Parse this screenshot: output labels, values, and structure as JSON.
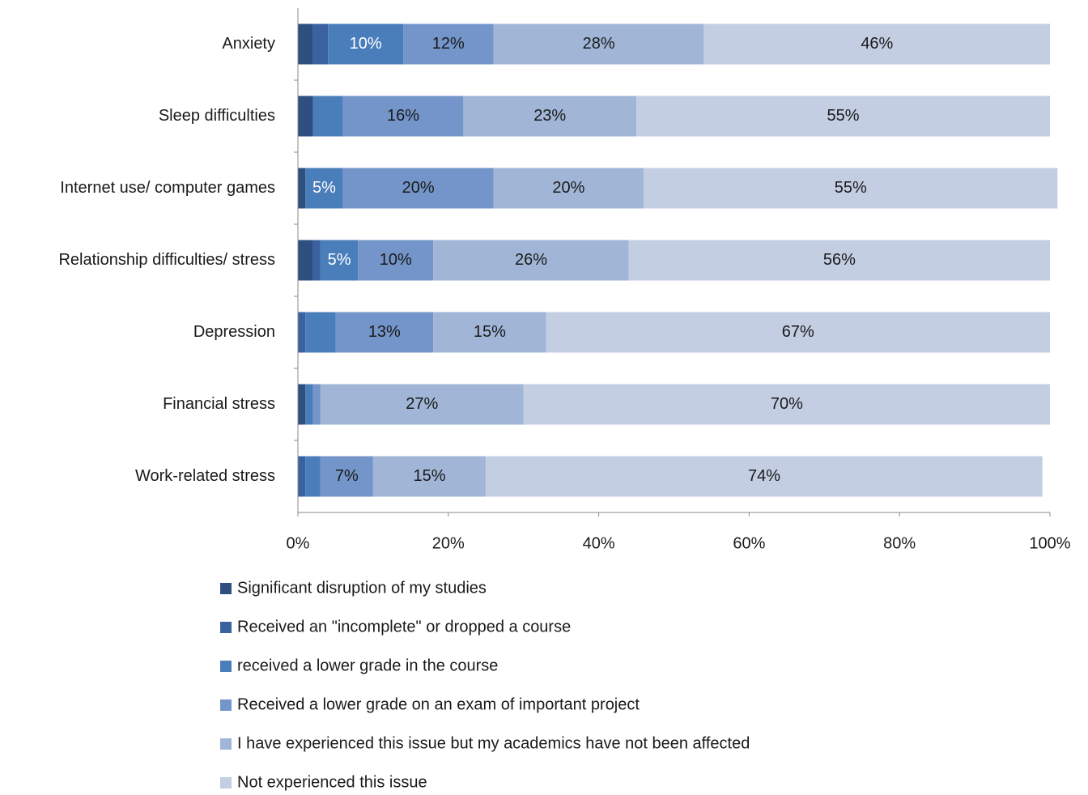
{
  "chart_data": {
    "type": "stacked_bar_horizontal",
    "categories": [
      "Anxiety",
      "Sleep difficulties",
      "Internet use/ computer games",
      "Relationship difficulties/ stress",
      "Depression",
      "Financial stress",
      "Work-related stress"
    ],
    "series": [
      {
        "name": "Significant disruption of my studies",
        "color": "#2e4f7f",
        "label_color": "#ffffff",
        "values": [
          2,
          2,
          1,
          2,
          0,
          1,
          0
        ],
        "value_labels": [
          null,
          null,
          null,
          null,
          null,
          null,
          null
        ]
      },
      {
        "name": "Received an \"incomplete\" or dropped a course",
        "color": "#3a62a0",
        "label_color": "#ffffff",
        "values": [
          2,
          0,
          0,
          1,
          1,
          0,
          1
        ],
        "value_labels": [
          null,
          null,
          null,
          null,
          null,
          null,
          null
        ]
      },
      {
        "name": "received a lower grade in the course",
        "color": "#4a7ebb",
        "label_color": "#ffffff",
        "values": [
          10,
          4,
          5,
          5,
          4,
          1,
          2
        ],
        "value_labels": [
          "10%",
          null,
          "5%",
          "5%",
          null,
          null,
          null
        ]
      },
      {
        "name": "Received a lower grade on an exam of important project",
        "color": "#7395c9",
        "label_color": "#1a1a1a",
        "values": [
          12,
          16,
          20,
          10,
          13,
          1,
          7
        ],
        "value_labels": [
          "12%",
          "16%",
          "20%",
          "10%",
          "13%",
          null,
          "7%"
        ]
      },
      {
        "name": "I have experienced this issue but my academics have not been affected",
        "color": "#a1b5d7",
        "label_color": "#1a1a1a",
        "values": [
          28,
          23,
          20,
          26,
          15,
          27,
          15
        ],
        "value_labels": [
          "28%",
          "23%",
          "20%",
          "26%",
          "15%",
          "27%",
          "15%"
        ]
      },
      {
        "name": "Not experienced this issue",
        "color": "#c3cee3",
        "label_color": "#1a1a1a",
        "values": [
          46,
          55,
          55,
          56,
          67,
          70,
          74
        ],
        "value_labels": [
          "46%",
          "55%",
          "55%",
          "56%",
          "67%",
          "70%",
          "74%"
        ]
      }
    ],
    "xlim": [
      0,
      100
    ],
    "xticks": [
      {
        "value": 0,
        "label": "0%"
      },
      {
        "value": 20,
        "label": "20%"
      },
      {
        "value": 40,
        "label": "40%"
      },
      {
        "value": 60,
        "label": "60%"
      },
      {
        "value": 80,
        "label": "80%"
      },
      {
        "value": 100,
        "label": "100%"
      }
    ],
    "legend": "bottom"
  }
}
